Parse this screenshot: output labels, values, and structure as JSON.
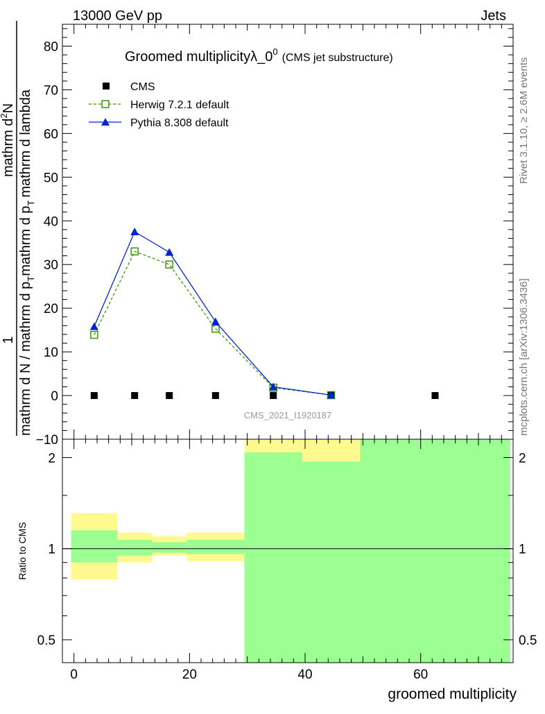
{
  "header": {
    "left": "13000 GeV pp",
    "right": "Jets"
  },
  "side_labels": {
    "rivet": "Rivet 3.1.10, ≥ 2.6M events",
    "mcplots": "mcplots.cern.ch [arXiv:1306.3436]"
  },
  "chart_data": [
    {
      "type": "scatter",
      "title": "Groomed multiplicityλ_0",
      "title_sup": "0",
      "subtitle": "(CMS jet substructure)",
      "watermark": "CMS_2021_I1920187",
      "ylabel": {
        "num": "1",
        "den": "mathrm d N / mathrm d p",
        "den_sub": "T",
        "den_tail": "mathrm d p",
        "den_tail_sub": "T",
        "den_end": "mathrm d lambda",
        "num2": "mathrm d",
        "num2_sup": "2",
        "num2_tail": "N"
      },
      "xlim": [
        -2,
        76
      ],
      "ylim": [
        -10,
        85
      ],
      "yticks": [
        -10,
        0,
        10,
        20,
        30,
        40,
        50,
        60,
        70,
        80
      ],
      "legend_position": "top-left",
      "series": [
        {
          "name": "CMS",
          "color": "#000000",
          "marker": "square-filled",
          "x": [
            3.5,
            10.5,
            16.5,
            24.5,
            34.5,
            44.5,
            62.5
          ],
          "y": [
            0,
            0,
            0,
            0,
            0,
            0,
            0
          ]
        },
        {
          "name": "Herwig 7.2.1 default",
          "color": "#339900",
          "marker": "square-open",
          "line": "dashed",
          "x": [
            3.5,
            10.5,
            16.5,
            24.5,
            34.5,
            44.5
          ],
          "y": [
            13.9,
            33.0,
            30.0,
            15.3,
            1.8,
            0.1
          ]
        },
        {
          "name": "Pythia 8.308 default",
          "color": "#0022dd",
          "marker": "triangle-filled",
          "line": "solid",
          "x": [
            3.5,
            10.5,
            16.5,
            24.5,
            34.5,
            44.5
          ],
          "y": [
            15.8,
            37.5,
            32.8,
            16.9,
            2.0,
            0.1
          ]
        }
      ]
    },
    {
      "type": "area",
      "ylabel": "Ratio to CMS",
      "xlabel": "groomed multiplicity",
      "xlim": [
        -2,
        76
      ],
      "ylim": [
        0.42,
        2.3
      ],
      "yscale": "log",
      "xticks": [
        0,
        20,
        40,
        60
      ],
      "yticks": [
        0.5,
        1,
        2
      ],
      "reference_line": 1,
      "bands": [
        {
          "x0": -0.5,
          "x1": 7.5,
          "green": [
            0.9,
            1.15
          ],
          "yellow": [
            0.79,
            1.31
          ]
        },
        {
          "x0": 7.5,
          "x1": 13.5,
          "green": [
            0.95,
            1.07
          ],
          "yellow": [
            0.9,
            1.13
          ]
        },
        {
          "x0": 13.5,
          "x1": 19.5,
          "green": [
            0.97,
            1.05
          ],
          "yellow": [
            0.95,
            1.1
          ]
        },
        {
          "x0": 19.5,
          "x1": 29.5,
          "green": [
            0.96,
            1.07
          ],
          "yellow": [
            0.91,
            1.13
          ]
        },
        {
          "x0": 29.5,
          "x1": 39.5,
          "green": [
            0.0,
            2.08
          ],
          "yellow": [
            0.0,
            2.3
          ]
        },
        {
          "x0": 39.5,
          "x1": 49.5,
          "green": [
            0.0,
            1.94
          ],
          "yellow": [
            0.0,
            2.3
          ]
        },
        {
          "x0": 49.5,
          "x1": 75.5,
          "green": [
            0.0,
            2.3
          ],
          "yellow": [
            0.0,
            2.3
          ]
        }
      ]
    }
  ]
}
